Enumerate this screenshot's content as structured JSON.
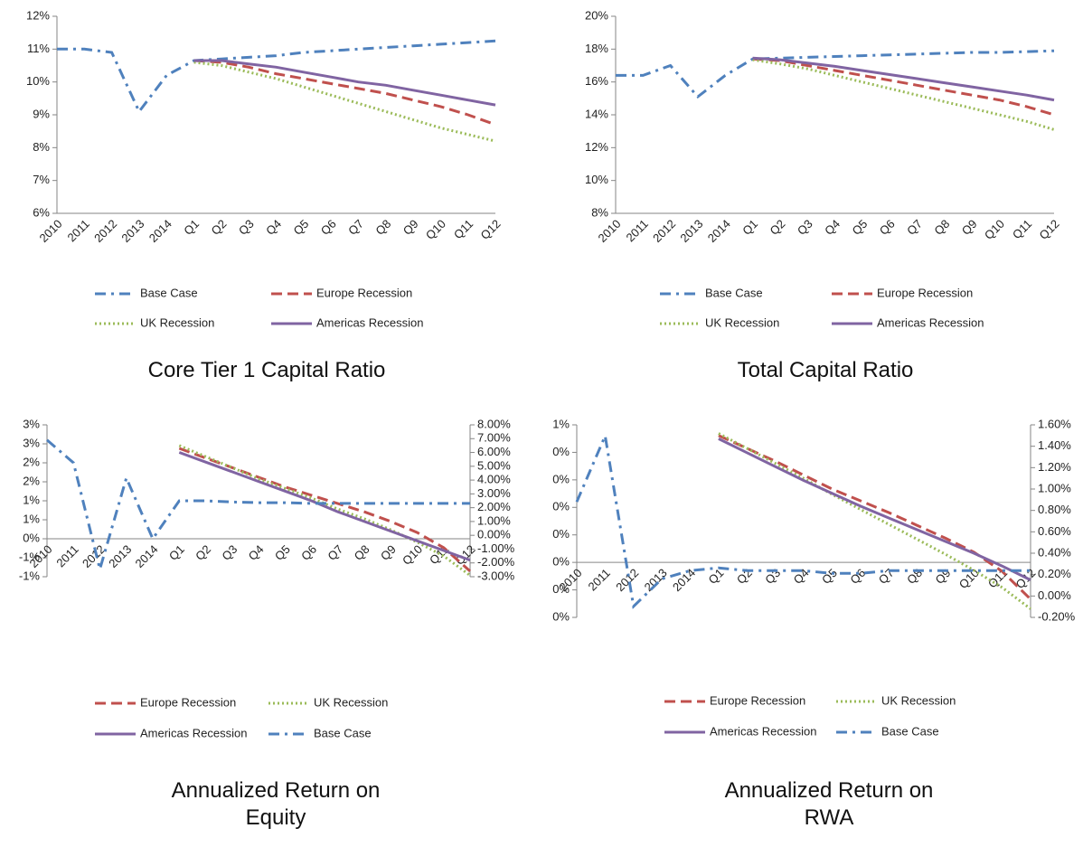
{
  "chart_data": [
    {
      "type": "line",
      "title": "Core Tier 1 Capital Ratio",
      "categories": [
        "2010",
        "2011",
        "2012",
        "2013",
        "2014",
        "Q1",
        "Q2",
        "Q3",
        "Q4",
        "Q5",
        "Q6",
        "Q7",
        "Q8",
        "Q9",
        "Q10",
        "Q11",
        "Q12"
      ],
      "ylim": [
        6,
        12
      ],
      "yticks": [
        {
          "value": 6,
          "label": "6%"
        },
        {
          "value": 7,
          "label": "7%"
        },
        {
          "value": 8,
          "label": "8%"
        },
        {
          "value": 9,
          "label": "9%"
        },
        {
          "value": 10,
          "label": "10%"
        },
        {
          "value": 11,
          "label": "11%"
        },
        {
          "value": 12,
          "label": "12%"
        }
      ],
      "series": [
        {
          "name": "Base Case",
          "color": "#4f81bd",
          "line_style": "dash-dot",
          "values": [
            11.0,
            11.0,
            10.9,
            9.1,
            10.2,
            10.65,
            10.7,
            10.75,
            10.8,
            10.9,
            10.95,
            11.0,
            11.05,
            11.1,
            11.15,
            11.2,
            11.25
          ]
        },
        {
          "name": "Europe Recession",
          "color": "#c0504d",
          "line_style": "dash",
          "values": [
            null,
            null,
            null,
            null,
            null,
            10.65,
            10.6,
            10.45,
            10.25,
            10.1,
            9.95,
            9.8,
            9.65,
            9.45,
            9.25,
            9.0,
            8.7
          ]
        },
        {
          "name": "UK Recession",
          "color": "#9bbb59",
          "line_style": "dot",
          "values": [
            null,
            null,
            null,
            null,
            null,
            10.6,
            10.5,
            10.3,
            10.1,
            9.85,
            9.6,
            9.35,
            9.1,
            8.85,
            8.6,
            8.4,
            8.2
          ]
        },
        {
          "name": "Americas Recession",
          "color": "#8064a2",
          "line_style": "solid",
          "values": [
            null,
            null,
            null,
            null,
            null,
            10.65,
            10.65,
            10.55,
            10.45,
            10.3,
            10.15,
            10.0,
            9.9,
            9.75,
            9.6,
            9.45,
            9.3
          ]
        }
      ]
    },
    {
      "type": "line",
      "title": "Total Capital Ratio",
      "categories": [
        "2010",
        "2011",
        "2012",
        "2013",
        "2014",
        "Q1",
        "Q2",
        "Q3",
        "Q4",
        "Q5",
        "Q6",
        "Q7",
        "Q8",
        "Q9",
        "Q10",
        "Q11",
        "Q12"
      ],
      "ylim": [
        8,
        20
      ],
      "yticks": [
        {
          "value": 8,
          "label": "8%"
        },
        {
          "value": 10,
          "label": "10%"
        },
        {
          "value": 12,
          "label": "12%"
        },
        {
          "value": 14,
          "label": "14%"
        },
        {
          "value": 16,
          "label": "16%"
        },
        {
          "value": 18,
          "label": "18%"
        },
        {
          "value": 20,
          "label": "20%"
        }
      ],
      "series": [
        {
          "name": "Base Case",
          "color": "#4f81bd",
          "line_style": "dash-dot",
          "values": [
            16.4,
            16.4,
            17.0,
            15.1,
            16.4,
            17.4,
            17.45,
            17.5,
            17.55,
            17.6,
            17.65,
            17.7,
            17.75,
            17.8,
            17.8,
            17.85,
            17.9
          ]
        },
        {
          "name": "Europe Recession",
          "color": "#c0504d",
          "line_style": "dash",
          "values": [
            null,
            null,
            null,
            null,
            null,
            17.4,
            17.3,
            17.0,
            16.7,
            16.4,
            16.1,
            15.8,
            15.5,
            15.2,
            14.9,
            14.5,
            14.0
          ]
        },
        {
          "name": "UK Recession",
          "color": "#9bbb59",
          "line_style": "dot",
          "values": [
            null,
            null,
            null,
            null,
            null,
            17.35,
            17.1,
            16.8,
            16.4,
            16.0,
            15.6,
            15.2,
            14.8,
            14.4,
            14.0,
            13.6,
            13.1
          ]
        },
        {
          "name": "Americas Recession",
          "color": "#8064a2",
          "line_style": "solid",
          "values": [
            null,
            null,
            null,
            null,
            null,
            17.45,
            17.35,
            17.15,
            16.95,
            16.7,
            16.45,
            16.2,
            15.95,
            15.7,
            15.45,
            15.2,
            14.9
          ]
        }
      ]
    },
    {
      "type": "line",
      "title": "Annualized Return on Equity",
      "categories": [
        "2010",
        "2011",
        "2012",
        "2013",
        "2014",
        "Q1",
        "Q2",
        "Q3",
        "Q4",
        "Q5",
        "Q6",
        "Q7",
        "Q8",
        "Q9",
        "Q10",
        "Q11",
        "Q12"
      ],
      "ylim": [
        -1,
        3
      ],
      "yticks": [
        {
          "value": -1,
          "label": "-1%"
        },
        {
          "value": -0.5,
          "label": "-1%"
        },
        {
          "value": 0,
          "label": "0%"
        },
        {
          "value": 0.5,
          "label": "1%"
        },
        {
          "value": 1,
          "label": "1%"
        },
        {
          "value": 1.5,
          "label": "2%"
        },
        {
          "value": 2,
          "label": "2%"
        },
        {
          "value": 2.5,
          "label": "3%"
        },
        {
          "value": 3,
          "label": "3%"
        }
      ],
      "y2lim": [
        -3,
        8
      ],
      "y2ticks": [
        {
          "value": -3,
          "label": "-3.00%"
        },
        {
          "value": -2,
          "label": "-2.00%"
        },
        {
          "value": -1,
          "label": "-1.00%"
        },
        {
          "value": 0,
          "label": "0.00%"
        },
        {
          "value": 1,
          "label": "1.00%"
        },
        {
          "value": 2,
          "label": "2.00%"
        },
        {
          "value": 3,
          "label": "3.00%"
        },
        {
          "value": 4,
          "label": "4.00%"
        },
        {
          "value": 5,
          "label": "5.00%"
        },
        {
          "value": 6,
          "label": "6.00%"
        },
        {
          "value": 7,
          "label": "7.00%"
        },
        {
          "value": 8,
          "label": "8.00%"
        }
      ],
      "series": [
        {
          "name": "Europe Recession",
          "color": "#c0504d",
          "line_style": "dash",
          "axis": "y2",
          "values": [
            null,
            null,
            null,
            null,
            null,
            6.3,
            5.6,
            4.9,
            4.2,
            3.5,
            2.9,
            2.3,
            1.7,
            1.0,
            0.2,
            -0.9,
            -2.6
          ]
        },
        {
          "name": "UK Recession",
          "color": "#9bbb59",
          "line_style": "dot",
          "axis": "y2",
          "values": [
            null,
            null,
            null,
            null,
            null,
            6.5,
            5.7,
            4.9,
            4.1,
            3.4,
            2.7,
            1.9,
            1.2,
            0.4,
            -0.5,
            -1.5,
            -2.9
          ]
        },
        {
          "name": "Americas Recession",
          "color": "#8064a2",
          "line_style": "solid",
          "axis": "y2",
          "values": [
            null,
            null,
            null,
            null,
            null,
            6.0,
            5.3,
            4.6,
            3.9,
            3.2,
            2.5,
            1.7,
            1.0,
            0.3,
            -0.4,
            -1.1,
            -1.8
          ]
        },
        {
          "name": "Base Case",
          "color": "#4f81bd",
          "line_style": "dash-dot",
          "values": [
            2.6,
            2.0,
            -0.8,
            1.6,
            0.0,
            1.0,
            1.0,
            0.97,
            0.95,
            0.95,
            0.93,
            0.93,
            0.93,
            0.93,
            0.93,
            0.93,
            0.93
          ]
        }
      ]
    },
    {
      "type": "line",
      "title": "Annualized Return on RWA",
      "categories": [
        "2010",
        "2011",
        "2012",
        "2013",
        "2014",
        "Q1",
        "Q2",
        "Q3",
        "Q4",
        "Q5",
        "Q6",
        "Q7",
        "Q8",
        "Q9",
        "Q10",
        "Q11",
        "Q12"
      ],
      "ylim": [
        -0.2,
        0.5
      ],
      "yticks": [
        {
          "value": -0.2,
          "label": "0%"
        },
        {
          "value": -0.1,
          "label": "0%"
        },
        {
          "value": 0,
          "label": "0%"
        },
        {
          "value": 0.1,
          "label": "0%"
        },
        {
          "value": 0.2,
          "label": "0%"
        },
        {
          "value": 0.3,
          "label": "0%"
        },
        {
          "value": 0.4,
          "label": "0%"
        },
        {
          "value": 0.5,
          "label": "1%"
        }
      ],
      "y2lim": [
        -0.2,
        1.6
      ],
      "y2ticks": [
        {
          "value": -0.2,
          "label": "-0.20%"
        },
        {
          "value": 0,
          "label": "0.00%"
        },
        {
          "value": 0.2,
          "label": "0.20%"
        },
        {
          "value": 0.4,
          "label": "0.40%"
        },
        {
          "value": 0.6,
          "label": "0.60%"
        },
        {
          "value": 0.8,
          "label": "0.80%"
        },
        {
          "value": 1.0,
          "label": "1.00%"
        },
        {
          "value": 1.2,
          "label": "1.20%"
        },
        {
          "value": 1.4,
          "label": "1.40%"
        },
        {
          "value": 1.6,
          "label": "1.60%"
        }
      ],
      "series": [
        {
          "name": "Europe Recession",
          "color": "#c0504d",
          "line_style": "dash",
          "axis": "y2",
          "values": [
            null,
            null,
            null,
            null,
            null,
            1.5,
            1.38,
            1.26,
            1.13,
            1.0,
            0.89,
            0.78,
            0.66,
            0.54,
            0.41,
            0.23,
            -0.03
          ]
        },
        {
          "name": "UK Recession",
          "color": "#9bbb59",
          "line_style": "dot",
          "axis": "y2",
          "values": [
            null,
            null,
            null,
            null,
            null,
            1.52,
            1.38,
            1.24,
            1.1,
            0.95,
            0.81,
            0.67,
            0.53,
            0.39,
            0.24,
            0.08,
            -0.12
          ]
        },
        {
          "name": "Americas Recession",
          "color": "#8064a2",
          "line_style": "solid",
          "axis": "y2",
          "values": [
            null,
            null,
            null,
            null,
            null,
            1.47,
            1.34,
            1.21,
            1.08,
            0.96,
            0.84,
            0.73,
            0.62,
            0.51,
            0.4,
            0.28,
            0.15
          ]
        },
        {
          "name": "Base Case",
          "color": "#4f81bd",
          "line_style": "dash-dot",
          "values": [
            0.22,
            0.46,
            -0.16,
            -0.06,
            -0.03,
            -0.02,
            -0.03,
            -0.03,
            -0.03,
            -0.04,
            -0.04,
            -0.03,
            -0.03,
            -0.03,
            -0.03,
            -0.03,
            -0.03
          ]
        }
      ]
    }
  ]
}
